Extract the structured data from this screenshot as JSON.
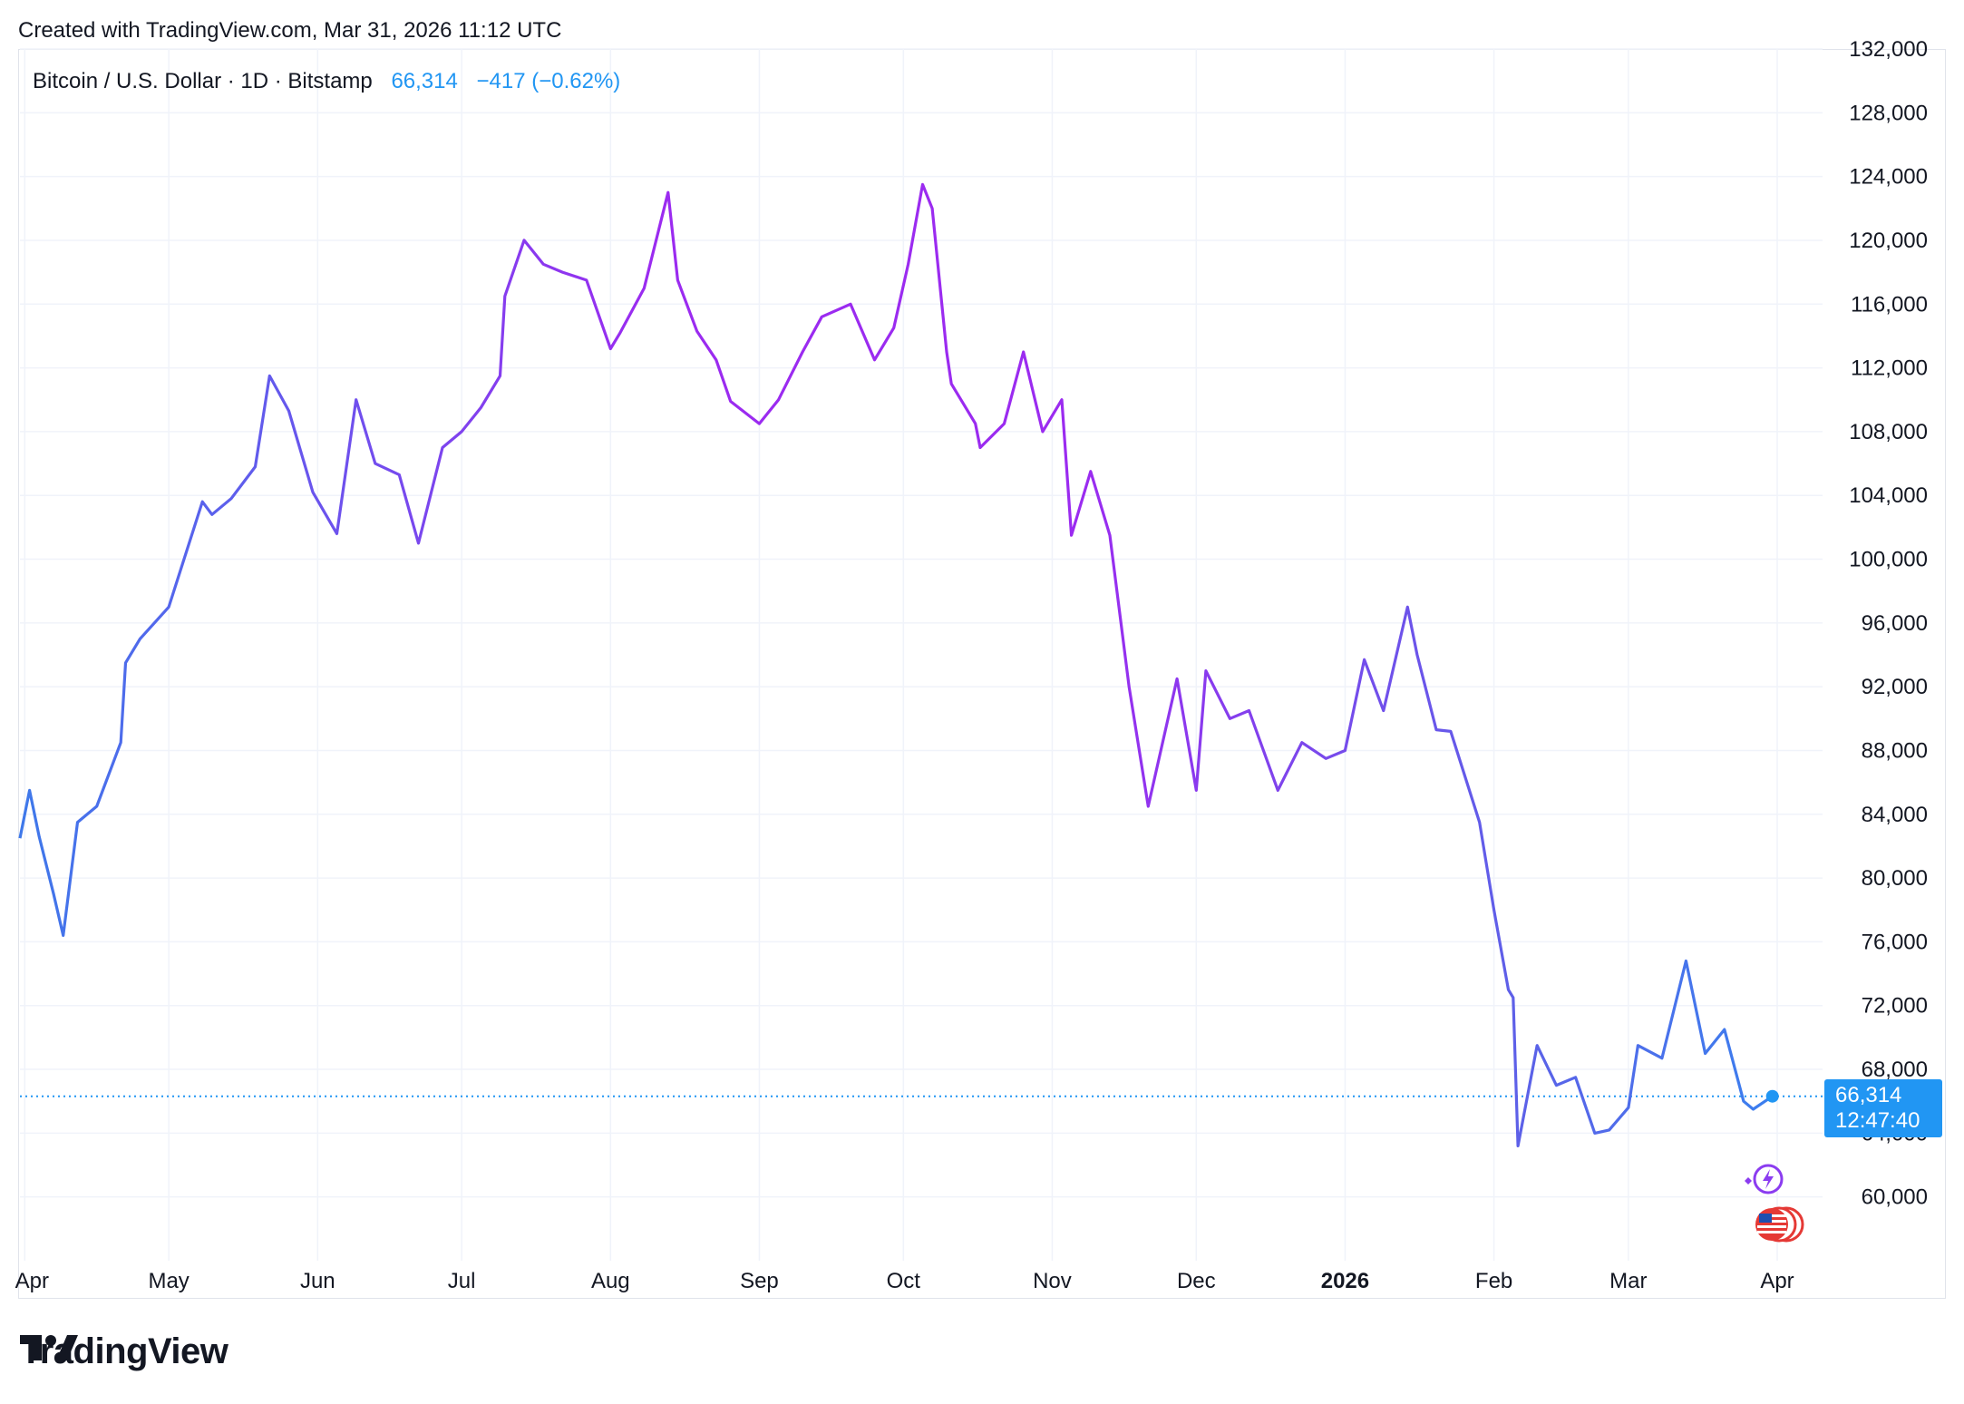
{
  "header": {
    "credit": "Created with TradingView.com, Mar 31, 2026 11:12 UTC"
  },
  "legend": {
    "symbol": "Bitcoin / U.S. Dollar · 1D · Bitstamp",
    "price": "66,314",
    "change": "−417 (−0.62%)"
  },
  "price_tag": {
    "price": "66,314",
    "countdown": "12:47:40"
  },
  "footer": {
    "brand": "TradingView"
  },
  "colors": {
    "start": "#3b7bea",
    "mid": "#9b2bf0",
    "end": "#2196f3",
    "grid": "#f0f3fa"
  },
  "chart_data": {
    "type": "line",
    "title": "",
    "xlabel": "",
    "ylabel": "",
    "ylim": [
      56000,
      132000
    ],
    "grid": true,
    "y_ticks": [
      "132,000",
      "128,000",
      "124,000",
      "120,000",
      "116,000",
      "112,000",
      "108,000",
      "104,000",
      "100,000",
      "96,000",
      "92,000",
      "88,000",
      "84,000",
      "80,000",
      "76,000",
      "72,000",
      "68,000",
      "64,000",
      "60,000"
    ],
    "x_ticks": [
      "Apr",
      "May",
      "Jun",
      "Jul",
      "Aug",
      "Sep",
      "Oct",
      "Nov",
      "Dec",
      "2026",
      "Feb",
      "Mar",
      "Apr"
    ],
    "series": [
      {
        "x": [
          "2025-03-31",
          "2025-04-02",
          "2025-04-04",
          "2025-04-07",
          "2025-04-09",
          "2025-04-12",
          "2025-04-16",
          "2025-04-21",
          "2025-04-22",
          "2025-04-25",
          "2025-05-01",
          "2025-05-08",
          "2025-05-10",
          "2025-05-14",
          "2025-05-19",
          "2025-05-22",
          "2025-05-26",
          "2025-05-31",
          "2025-06-05",
          "2025-06-09",
          "2025-06-13",
          "2025-06-18",
          "2025-06-22",
          "2025-06-27",
          "2025-07-01",
          "2025-07-05",
          "2025-07-09",
          "2025-07-10",
          "2025-07-14",
          "2025-07-18",
          "2025-07-22",
          "2025-07-27",
          "2025-08-01",
          "2025-08-03",
          "2025-08-08",
          "2025-08-13",
          "2025-08-15",
          "2025-08-19",
          "2025-08-23",
          "2025-08-26",
          "2025-09-01",
          "2025-09-05",
          "2025-09-10",
          "2025-09-14",
          "2025-09-20",
          "2025-09-25",
          "2025-09-29",
          "2025-10-02",
          "2025-10-05",
          "2025-10-07",
          "2025-10-10",
          "2025-10-11",
          "2025-10-16",
          "2025-10-17",
          "2025-10-22",
          "2025-10-26",
          "2025-10-30",
          "2025-11-03",
          "2025-11-05",
          "2025-11-09",
          "2025-11-13",
          "2025-11-17",
          "2025-11-21",
          "2025-11-27",
          "2025-12-01",
          "2025-12-03",
          "2025-12-08",
          "2025-12-12",
          "2025-12-18",
          "2025-12-23",
          "2025-12-28",
          "2026-01-01",
          "2026-01-05",
          "2026-01-09",
          "2026-01-14",
          "2026-01-16",
          "2026-01-20",
          "2026-01-23",
          "2026-01-29",
          "2026-02-01",
          "2026-02-04",
          "2026-02-05",
          "2026-02-06",
          "2026-02-10",
          "2026-02-14",
          "2026-02-18",
          "2026-02-22",
          "2026-02-25",
          "2026-03-01",
          "2026-03-03",
          "2026-03-08",
          "2026-03-13",
          "2026-03-17",
          "2026-03-21",
          "2026-03-25",
          "2026-03-27",
          "2026-03-31"
        ],
        "values": [
          82500,
          85500,
          82600,
          79000,
          76400,
          83500,
          84500,
          88500,
          93500,
          95000,
          97000,
          103600,
          102800,
          103800,
          105800,
          111500,
          109300,
          104200,
          101600,
          110000,
          106000,
          105300,
          101000,
          107000,
          108000,
          109500,
          111500,
          116500,
          120000,
          118500,
          118000,
          117500,
          113200,
          114200,
          117000,
          123000,
          117500,
          114300,
          112500,
          109900,
          108500,
          110000,
          113000,
          115200,
          116000,
          112500,
          114500,
          118500,
          123500,
          122000,
          113000,
          111000,
          108500,
          107000,
          108500,
          113000,
          108000,
          110000,
          101500,
          105500,
          101500,
          92000,
          84500,
          92500,
          85500,
          93000,
          90000,
          90500,
          85500,
          88500,
          87500,
          88000,
          93700,
          90500,
          97000,
          94000,
          89300,
          89200,
          83500,
          78000,
          73000,
          72500,
          63200,
          69500,
          67000,
          67500,
          64000,
          64200,
          65600,
          69500,
          68700,
          74800,
          69000,
          70500,
          66000,
          65500,
          66314
        ]
      }
    ]
  }
}
